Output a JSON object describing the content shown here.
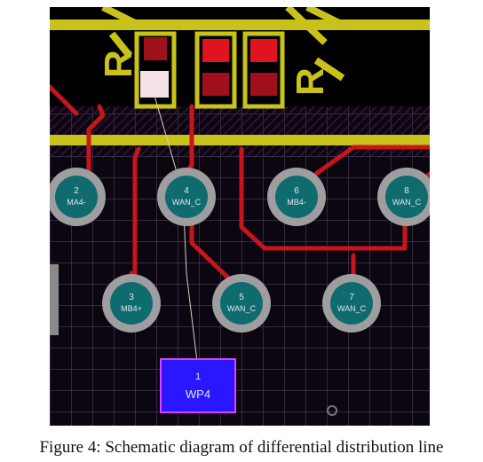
{
  "figure": {
    "colors": {
      "board": "#0b0610",
      "black_area": "#000000",
      "grid": "#5b4c66",
      "silkscreen": "#c8c21a",
      "trace": "#c8141c",
      "pad_outer": "#9e9ea0",
      "pad_inner": "#0f6b6e",
      "smd_red": "#e0141e",
      "smd_dark": "#a0101a",
      "smd_white": "#f3e3e8",
      "wp_fill": "#2a16ff",
      "wp_border": "#e040ff"
    },
    "pads_top": [
      {
        "number": "2",
        "net": "MA4-"
      },
      {
        "number": "4",
        "net": "WAN_C"
      },
      {
        "number": "6",
        "net": "MB4-"
      },
      {
        "number": "8",
        "net": "WAN_C"
      }
    ],
    "pads_bottom": [
      {
        "number": "3",
        "net": "MB4+"
      },
      {
        "number": "5",
        "net": "WAN_C"
      },
      {
        "number": "7",
        "net": "WAN_C"
      }
    ],
    "wp_pad": {
      "number": "1",
      "net": "WP4"
    },
    "silk_labels": {
      "left": "R",
      "right": "R"
    }
  },
  "caption": "Figure 4: Schematic diagram of differential distribution line"
}
